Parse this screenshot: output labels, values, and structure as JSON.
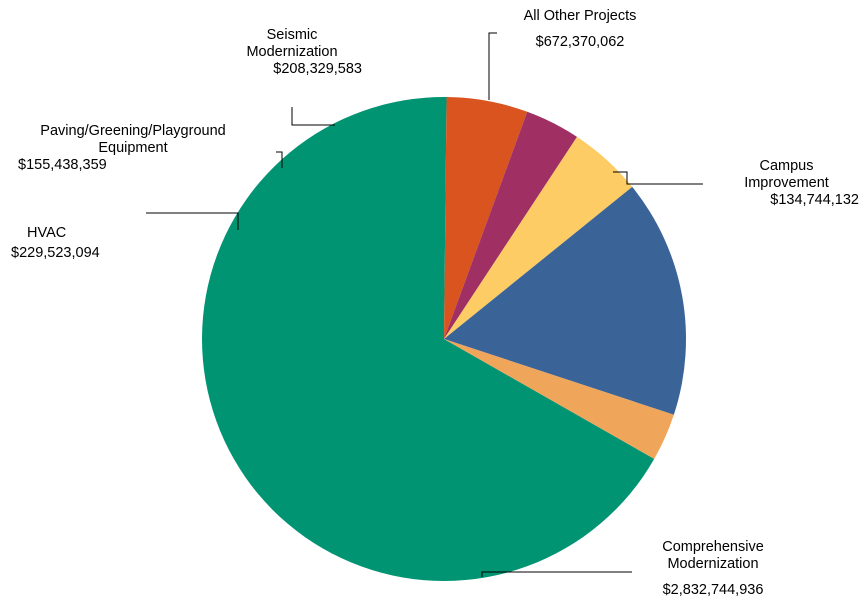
{
  "chart_data": {
    "type": "pie",
    "slices": [
      {
        "label_lines": [
          "Comprehensive",
          "Modernization"
        ],
        "value_text": "$2,832,744,936",
        "value": 2832744936,
        "color": "#009473"
      },
      {
        "label_lines": [
          "HVAC"
        ],
        "value_text": "$229,523,094",
        "value": 229523094,
        "color": "#DA5420"
      },
      {
        "label_lines": [
          "Paving/Greening/Playground",
          "Equipment"
        ],
        "value_text": "$155,438,359",
        "value": 155438359,
        "color": "#A03064"
      },
      {
        "label_lines": [
          "Seismic",
          "Modernization"
        ],
        "value_text": "$208,329,583",
        "value": 208329583,
        "color": "#FDCC64"
      },
      {
        "label_lines": [
          "All Other Projects"
        ],
        "value_text": "$672,370,062",
        "value": 672370062,
        "color": "#3A6397"
      },
      {
        "label_lines": [
          "Campus",
          "Improvement"
        ],
        "value_text": "$134,744,132",
        "value": 134744132,
        "color": "#EFA55A"
      }
    ],
    "legend": "none"
  }
}
